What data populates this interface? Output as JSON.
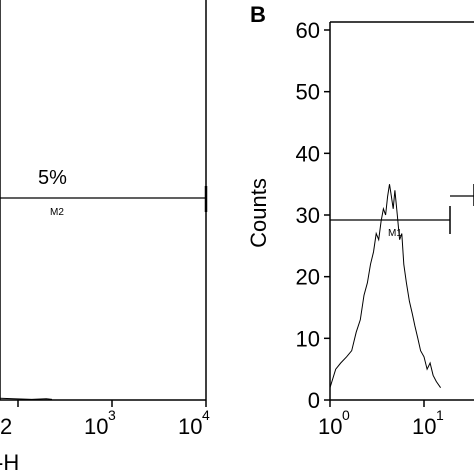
{
  "chart_data": [
    {
      "panel": "A",
      "type": "line",
      "x_scale": "log",
      "xlim": [
        1,
        10000
      ],
      "xlabel_fragment": "-H",
      "x_ticks": [
        {
          "value": 100,
          "base": "10",
          "exp": "2",
          "partial_text": "2"
        },
        {
          "value": 1000,
          "base": "10",
          "exp": "3"
        },
        {
          "value": 10000,
          "base": "10",
          "exp": "4"
        }
      ],
      "gate": {
        "name": "M2",
        "label": "M2",
        "percent_text": "5%",
        "x_range": [
          1,
          10000
        ]
      },
      "series": [
        {
          "x": [
            8,
            15,
            25,
            40,
            60,
            90,
            140,
            200,
            230
          ],
          "y": [
            0.3,
            0.2,
            0.3,
            0.2,
            0.3,
            0.2,
            0.1,
            0.2,
            0.1
          ]
        }
      ]
    },
    {
      "panel": "B",
      "panel_label": "B",
      "type": "line",
      "x_scale": "log",
      "xlim": [
        1,
        100
      ],
      "ylim": [
        0,
        60
      ],
      "ylabel": "Counts",
      "y_ticks": [
        "0",
        "10",
        "20",
        "30",
        "40",
        "50",
        "60"
      ],
      "x_ticks": [
        {
          "value": 1,
          "base": "10",
          "exp": "0"
        },
        {
          "value": 10,
          "base": "10",
          "exp": "1"
        }
      ],
      "gate": {
        "name": "M1",
        "label": "M1",
        "x_range": [
          1,
          10
        ]
      },
      "series": [
        {
          "x": [
            1,
            1.15,
            1.3,
            1.5,
            1.7,
            1.9,
            2.1,
            2.3,
            2.5,
            2.7,
            2.9,
            3.1,
            3.3,
            3.5,
            3.7,
            3.9,
            4.1,
            4.3,
            4.5,
            4.7,
            4.9,
            5.2,
            5.5,
            5.8,
            6.1,
            6.5,
            7.0,
            7.5,
            8.0,
            8.6,
            9.2,
            10.0,
            10.8,
            11.6,
            12.5,
            13.5,
            15.0
          ],
          "y": [
            2,
            5,
            6,
            7,
            8,
            11,
            13,
            17,
            19,
            22,
            24,
            27,
            26,
            29,
            31,
            30,
            33,
            35,
            33,
            31,
            34,
            30,
            26,
            27,
            22,
            19,
            16,
            14,
            12,
            10,
            8,
            7,
            5,
            6,
            4,
            3,
            2
          ]
        }
      ]
    }
  ]
}
